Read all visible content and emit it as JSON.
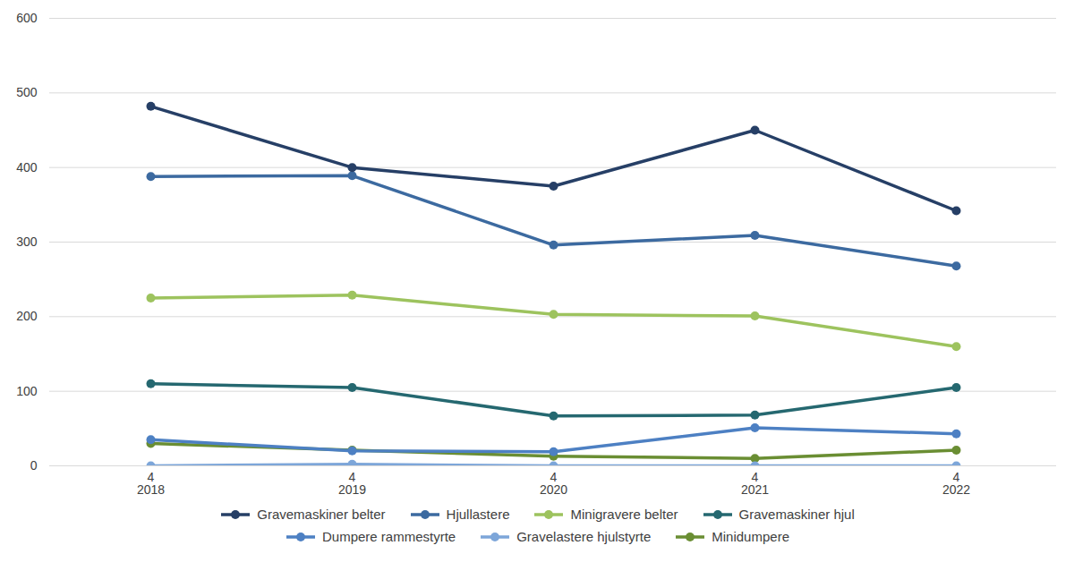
{
  "chart_data": {
    "type": "line",
    "categories": [
      "4\n2018",
      "4\n2019",
      "4\n2020",
      "4\n2021",
      "4\n2022"
    ],
    "series": [
      {
        "name": "Gravemaskiner belter",
        "color": "#263f66",
        "values": [
          482,
          400,
          375,
          450,
          342
        ]
      },
      {
        "name": "Hjullastere",
        "color": "#3c6aa0",
        "values": [
          388,
          389,
          296,
          309,
          268
        ]
      },
      {
        "name": "Minigravere belter",
        "color": "#9dc35e",
        "values": [
          225,
          229,
          203,
          201,
          160
        ]
      },
      {
        "name": "Gravemaskiner hjul",
        "color": "#256870",
        "values": [
          110,
          105,
          67,
          68,
          105
        ]
      },
      {
        "name": "Dumpere rammestyrte",
        "color": "#4d80c3",
        "values": [
          35,
          20,
          19,
          51,
          43
        ]
      },
      {
        "name": "Gravelastere hjulstyrte",
        "color": "#7da6d9",
        "values": [
          0,
          2,
          0,
          0,
          0
        ]
      },
      {
        "name": "Minidumpere",
        "color": "#6a8e33",
        "values": [
          30,
          21,
          13,
          10,
          21
        ]
      }
    ],
    "ylim": [
      0,
      600
    ],
    "yticks": [
      0,
      100,
      200,
      300,
      400,
      500,
      600
    ],
    "grid": true,
    "marker": "circle",
    "legend": "bottom"
  }
}
